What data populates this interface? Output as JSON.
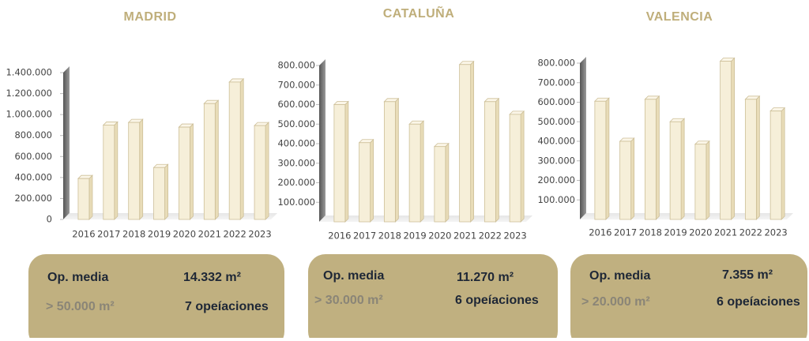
{
  "chart_data": [
    {
      "type": "bar",
      "title": "MADRID",
      "color": "#f6efd9",
      "categories": [
        "2016",
        "2017",
        "2018",
        "2019",
        "2020",
        "2021",
        "2022",
        "2023"
      ],
      "values": [
        390000,
        900000,
        925000,
        495000,
        880000,
        1105000,
        1310000,
        895000
      ],
      "ylim": [
        0,
        1400000
      ],
      "yticks": [
        0,
        {
          "value": 200000,
          "label": "200.000"
        },
        {
          "value": 400000,
          "label": "400.000"
        },
        {
          "value": 600000,
          "label": "600.000"
        },
        {
          "value": 800000,
          "label": "800.000"
        },
        {
          "value": 1000000,
          "label": "1.000.000"
        },
        {
          "value": 1200000,
          "label": "1.200.000"
        },
        {
          "value": 1400000,
          "label": "1.400.000"
        }
      ]
    },
    {
      "type": "bar",
      "title": "CATALUÑA",
      "color": "#f6efd9",
      "categories": [
        "2016",
        "2017",
        "2018",
        "2019",
        "2020",
        "2021",
        "2022",
        "2023"
      ],
      "values": [
        600000,
        405000,
        615000,
        500000,
        385000,
        805000,
        615000,
        550000
      ],
      "ylim": [
        0,
        800000
      ],
      "yticks": [
        {
          "value": 100000,
          "label": "100.000"
        },
        {
          "value": 200000,
          "label": "200.000"
        },
        {
          "value": 300000,
          "label": "300.000"
        },
        {
          "value": 400000,
          "label": "400.000"
        },
        {
          "value": 500000,
          "label": "500.000"
        },
        {
          "value": 600000,
          "label": "600.000"
        },
        {
          "value": 700000,
          "label": "700.000"
        },
        {
          "value": 800000,
          "label": "800.000"
        }
      ]
    },
    {
      "type": "bar",
      "title": "VALENCIA",
      "color": "#f6efd9",
      "categories": [
        "2016",
        "2017",
        "2018",
        "2019",
        "2020",
        "2021",
        "2022",
        "2023"
      ],
      "values": [
        605000,
        400000,
        615000,
        500000,
        385000,
        810000,
        615000,
        555000
      ],
      "ylim": [
        0,
        800000
      ],
      "yticks": [
        {
          "value": 100000,
          "label": "100.000"
        },
        {
          "value": 200000,
          "label": "200.000"
        },
        {
          "value": 300000,
          "label": "300.000"
        },
        {
          "value": 400000,
          "label": "400.000"
        },
        {
          "value": 500000,
          "label": "500.000"
        },
        {
          "value": 600000,
          "label": "600.000"
        },
        {
          "value": 700000,
          "label": "700.000"
        },
        {
          "value": 800000,
          "label": "800.000"
        }
      ]
    }
  ],
  "cards": [
    {
      "label1": "Op. media",
      "value1": "14.332 m²",
      "label2": "> 50.000 m²",
      "value2": "7 opeíaciones"
    },
    {
      "label1": "Op. media",
      "value1": "11.270 m²",
      "label2": "> 30.000 m²",
      "value2": "6 opeíaciones"
    },
    {
      "label1": "Op. media",
      "value1": "7.355 m²",
      "label2": "> 20.000 m²",
      "value2": "6 opeíaciones"
    }
  ]
}
